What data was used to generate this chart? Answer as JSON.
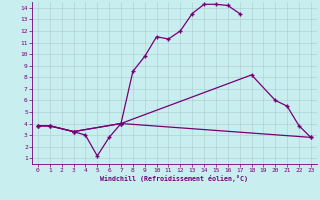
{
  "xlabel": "Windchill (Refroidissement éolien,°C)",
  "xlim": [
    -0.5,
    23.5
  ],
  "ylim": [
    0.5,
    14.5
  ],
  "xticks": [
    0,
    1,
    2,
    3,
    4,
    5,
    6,
    7,
    8,
    9,
    10,
    11,
    12,
    13,
    14,
    15,
    16,
    17,
    18,
    19,
    20,
    21,
    22,
    23
  ],
  "yticks": [
    1,
    2,
    3,
    4,
    5,
    6,
    7,
    8,
    9,
    10,
    11,
    12,
    13,
    14
  ],
  "bg_color": "#c8eef0",
  "line_color": "#770077",
  "grid_color": "#aacccc",
  "line1_x": [
    0,
    1,
    3,
    4,
    5,
    6,
    7,
    8,
    9,
    10,
    11,
    12,
    13,
    14,
    15,
    16,
    17
  ],
  "line1_y": [
    3.8,
    3.8,
    3.3,
    3.0,
    1.2,
    2.8,
    4.0,
    8.5,
    9.8,
    11.5,
    11.3,
    12.0,
    13.5,
    14.3,
    14.3,
    14.2,
    13.5
  ],
  "line2_x": [
    0,
    1,
    3,
    7,
    18,
    20,
    21,
    22,
    23
  ],
  "line2_y": [
    3.8,
    3.8,
    3.3,
    4.0,
    8.2,
    6.0,
    5.5,
    3.8,
    2.8
  ],
  "line3_x": [
    0,
    1,
    3,
    7,
    23
  ],
  "line3_y": [
    3.8,
    3.8,
    3.3,
    4.0,
    2.8
  ]
}
